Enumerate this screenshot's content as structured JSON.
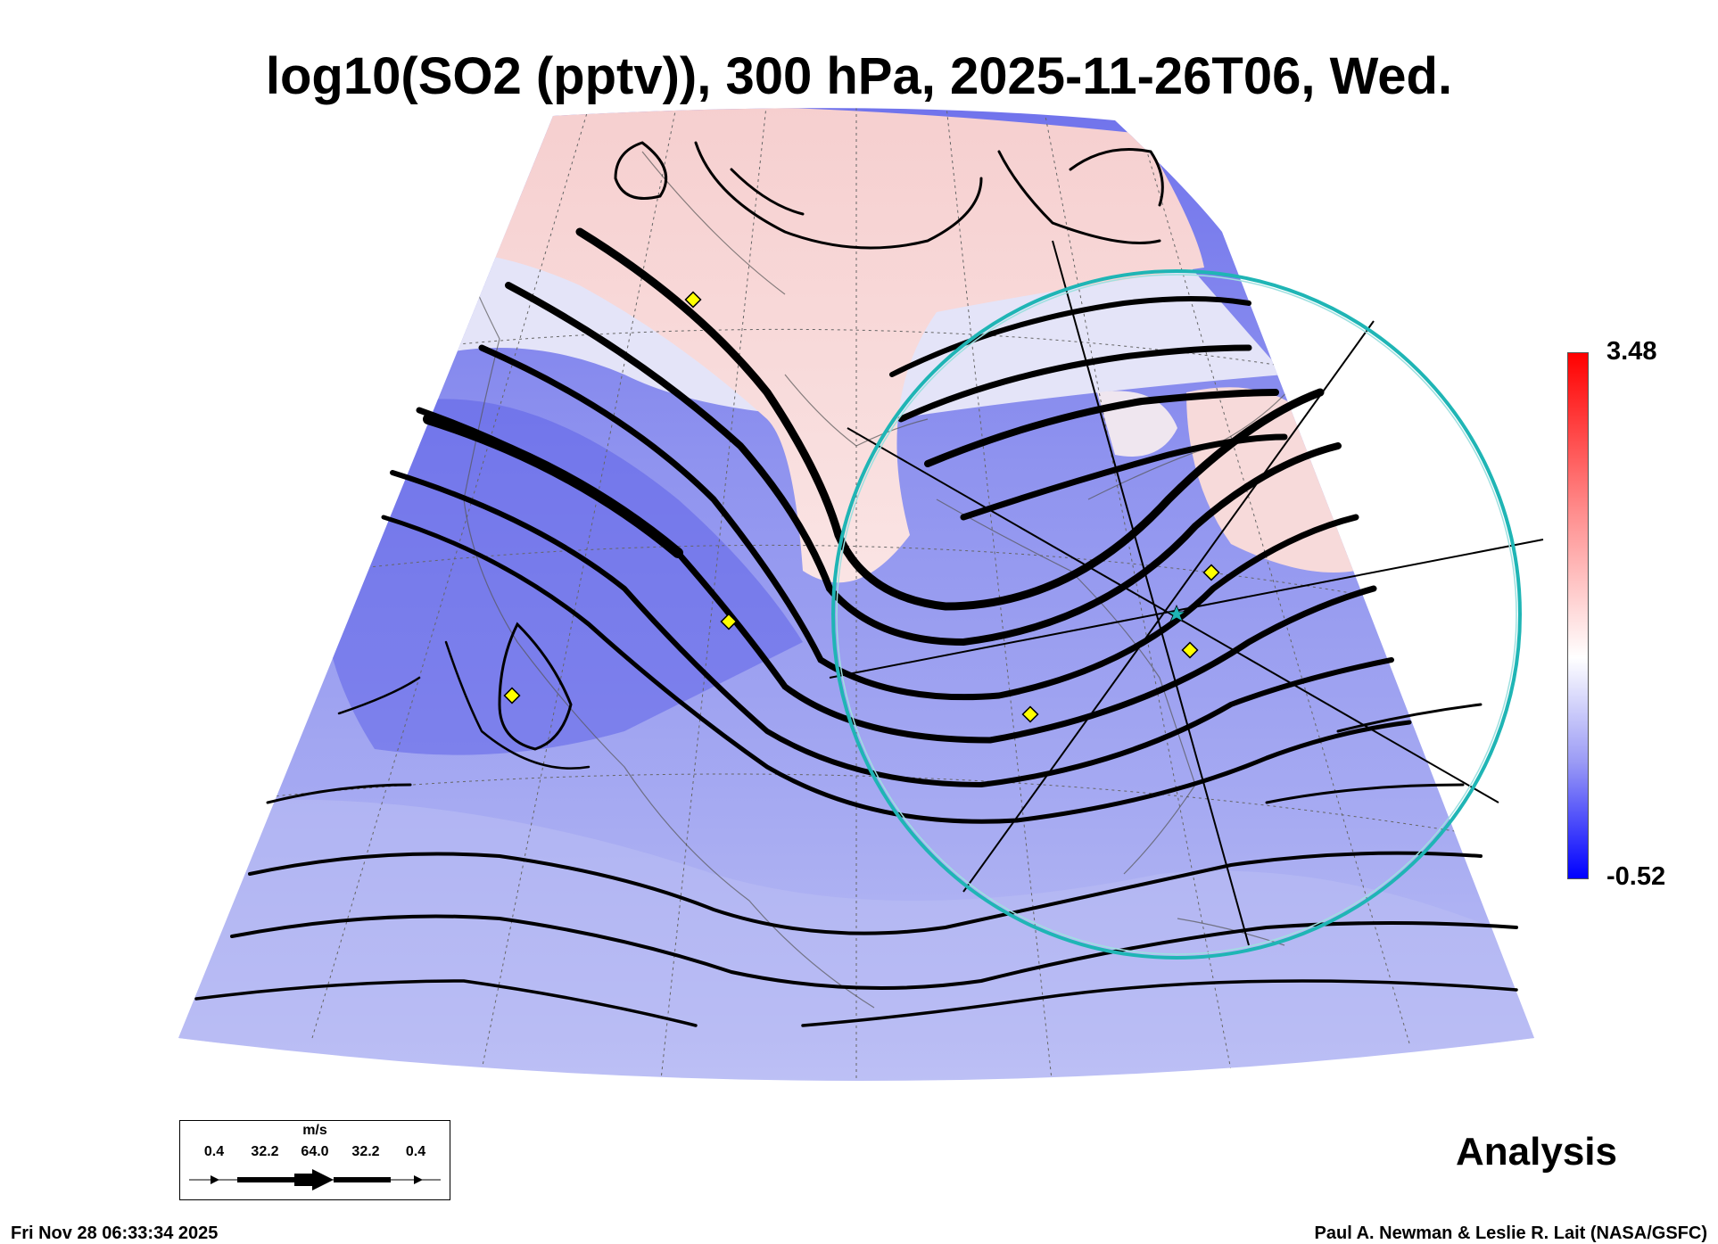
{
  "title": "log10(SO2 (pptv)), 300 hPa, 2025-11-26T06, Wed.",
  "colorbar": {
    "max_label": "3.48",
    "min_label": "-0.52",
    "low_color": "#0000ff",
    "mid_color": "#ffffff",
    "high_color": "#ff0000"
  },
  "legend": {
    "unit": "m/s",
    "speeds": [
      "0.4",
      "32.2",
      "64.0",
      "32.2",
      "0.4"
    ]
  },
  "analysis_label": "Analysis",
  "timestamp": "Fri Nov 28 06:33:34 2025",
  "credit": "Paul A. Newman & Leslie R. Lait (NASA/GSFC)",
  "markers": {
    "color": "#ffff00",
    "count": 6
  },
  "range_ring_color": "#1fb5b5"
}
